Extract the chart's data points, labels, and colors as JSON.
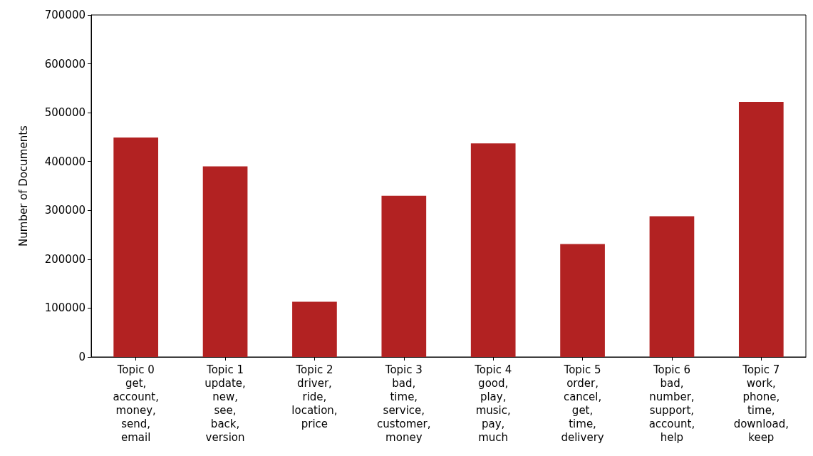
{
  "chart_data": {
    "type": "bar",
    "ylabel": "Number of Documents",
    "categories": [
      "Topic 0\nget,\naccount,\nmoney,\nsend,\nemail",
      "Topic 1\nupdate,\nnew,\nsee,\nback,\nversion",
      "Topic 2\ndriver,\nride,\nlocation,\nprice",
      "Topic 3\nbad,\ntime,\nservice,\ncustomer,\nmoney",
      "Topic 4\ngood,\nplay,\nmusic,\npay,\nmuch",
      "Topic 5\norder,\ncancel,\nget,\ntime,\ndelivery",
      "Topic 6\nbad,\nnumber,\nsupport,\naccount,\nhelp",
      "Topic 7\nwork,\nphone,\ntime,\ndownload,\nkeep"
    ],
    "values": [
      449000,
      390000,
      113000,
      330000,
      437000,
      231000,
      288000,
      522000
    ],
    "color": "#b22222",
    "ylim": [
      0,
      700000
    ],
    "yticks": [
      0,
      100000,
      200000,
      300000,
      400000,
      500000,
      600000,
      700000
    ],
    "grid": false
  }
}
